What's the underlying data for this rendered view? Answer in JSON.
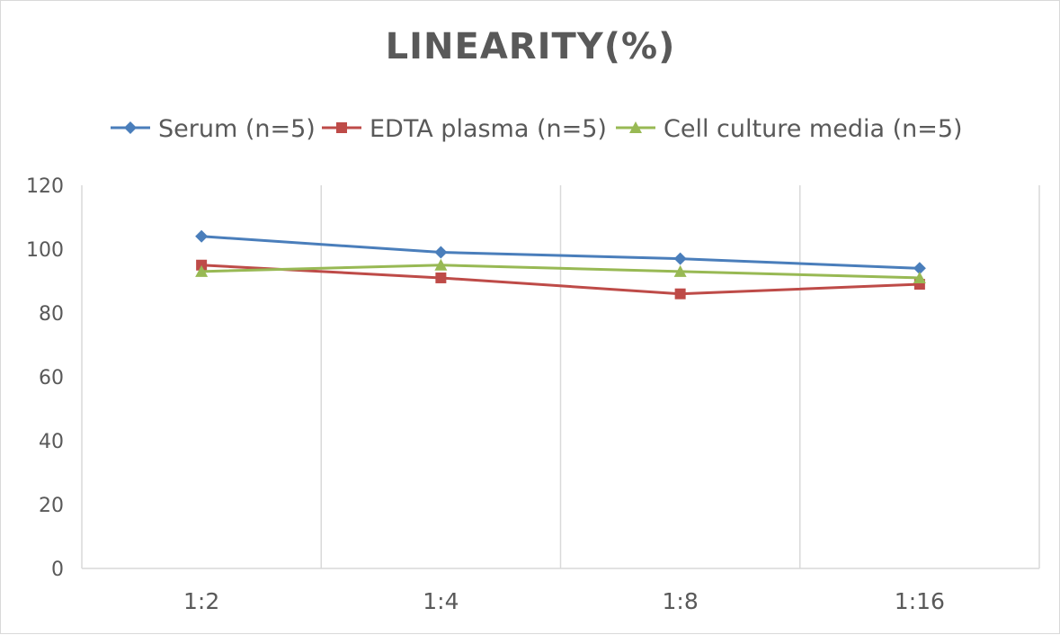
{
  "chart_data": {
    "type": "line",
    "title": "LINEARITY(%)",
    "categories": [
      "1:2",
      "1:4",
      "1:8",
      "1:16"
    ],
    "series": [
      {
        "name": "Serum (n=5)",
        "color": "#4a7ebb",
        "marker": "diamond",
        "values": [
          104,
          99,
          97,
          94
        ]
      },
      {
        "name": "EDTA plasma (n=5)",
        "color": "#be4b48",
        "marker": "square",
        "values": [
          95,
          91,
          86,
          89
        ]
      },
      {
        "name": "Cell culture media (n=5)",
        "color": "#98b954",
        "marker": "triangle",
        "values": [
          93,
          95,
          93,
          91
        ]
      }
    ],
    "ylim": [
      0,
      120
    ],
    "yticks": [
      0,
      20,
      40,
      60,
      80,
      100,
      120
    ],
    "xlabel": "",
    "ylabel": "",
    "legend": "top",
    "grid": "vertical"
  }
}
